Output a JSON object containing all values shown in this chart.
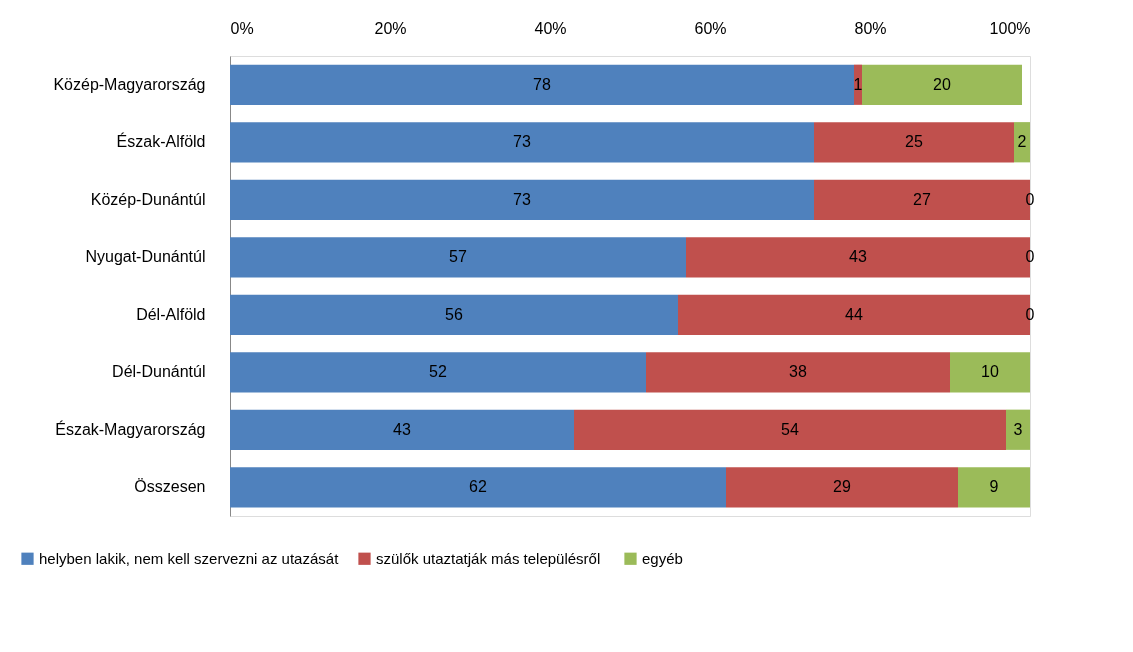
{
  "chart_data": {
    "type": "bar",
    "orientation": "horizontal",
    "stacked": true,
    "data_labels": true,
    "legend": "bottom",
    "grid": false,
    "categories": [
      "Közép-Magyarország",
      "Észak-Alföld",
      "Közép-Dunántúl",
      "Nyugat-Dunántúl",
      "Dél-Alföld",
      "Dél-Dunántúl",
      "Észak-Magyarország",
      "Összesen"
    ],
    "xlim": [
      0,
      100
    ],
    "xticks": [
      {
        "value": 0,
        "label": "0%"
      },
      {
        "value": 20,
        "label": "20%"
      },
      {
        "value": 40,
        "label": "40%"
      },
      {
        "value": 60,
        "label": "60%"
      },
      {
        "value": 80,
        "label": "80%"
      },
      {
        "value": 100,
        "label": "100%"
      }
    ],
    "series": [
      {
        "name": "helyben lakik, nem kell szervezni az utazását",
        "color": "#4f81bd",
        "values": [
          78,
          73,
          73,
          57,
          56,
          52,
          43,
          62
        ]
      },
      {
        "name": "szülők utaztatják  más településről",
        "color": "#c0504d",
        "values": [
          1,
          25,
          27,
          43,
          44,
          38,
          54,
          29
        ]
      },
      {
        "name": "egyéb",
        "color": "#9bbb59",
        "values": [
          20,
          2,
          0,
          0,
          0,
          10,
          3,
          9
        ]
      }
    ]
  }
}
